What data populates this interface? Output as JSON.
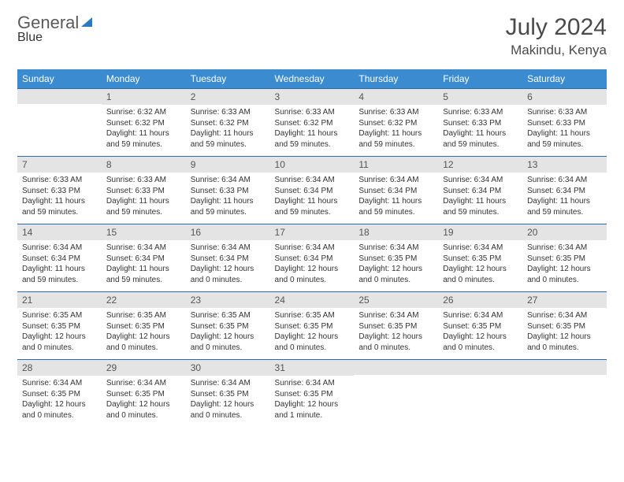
{
  "brand": {
    "part1": "General",
    "part2": "Blue"
  },
  "title": "July 2024",
  "location": "Makindu, Kenya",
  "colors": {
    "header_bg": "#3a8bd0",
    "header_text": "#ffffff",
    "daynum_bg": "#e4e4e4",
    "row_border": "#2a6aa8",
    "brand_blue": "#2a7ac0",
    "text": "#333333"
  },
  "weekdays": [
    "Sunday",
    "Monday",
    "Tuesday",
    "Wednesday",
    "Thursday",
    "Friday",
    "Saturday"
  ],
  "weeks": [
    [
      null,
      {
        "n": "1",
        "sr": "6:32 AM",
        "ss": "6:32 PM",
        "dl": "11 hours and 59 minutes."
      },
      {
        "n": "2",
        "sr": "6:33 AM",
        "ss": "6:32 PM",
        "dl": "11 hours and 59 minutes."
      },
      {
        "n": "3",
        "sr": "6:33 AM",
        "ss": "6:32 PM",
        "dl": "11 hours and 59 minutes."
      },
      {
        "n": "4",
        "sr": "6:33 AM",
        "ss": "6:32 PM",
        "dl": "11 hours and 59 minutes."
      },
      {
        "n": "5",
        "sr": "6:33 AM",
        "ss": "6:33 PM",
        "dl": "11 hours and 59 minutes."
      },
      {
        "n": "6",
        "sr": "6:33 AM",
        "ss": "6:33 PM",
        "dl": "11 hours and 59 minutes."
      }
    ],
    [
      {
        "n": "7",
        "sr": "6:33 AM",
        "ss": "6:33 PM",
        "dl": "11 hours and 59 minutes."
      },
      {
        "n": "8",
        "sr": "6:33 AM",
        "ss": "6:33 PM",
        "dl": "11 hours and 59 minutes."
      },
      {
        "n": "9",
        "sr": "6:34 AM",
        "ss": "6:33 PM",
        "dl": "11 hours and 59 minutes."
      },
      {
        "n": "10",
        "sr": "6:34 AM",
        "ss": "6:34 PM",
        "dl": "11 hours and 59 minutes."
      },
      {
        "n": "11",
        "sr": "6:34 AM",
        "ss": "6:34 PM",
        "dl": "11 hours and 59 minutes."
      },
      {
        "n": "12",
        "sr": "6:34 AM",
        "ss": "6:34 PM",
        "dl": "11 hours and 59 minutes."
      },
      {
        "n": "13",
        "sr": "6:34 AM",
        "ss": "6:34 PM",
        "dl": "11 hours and 59 minutes."
      }
    ],
    [
      {
        "n": "14",
        "sr": "6:34 AM",
        "ss": "6:34 PM",
        "dl": "11 hours and 59 minutes."
      },
      {
        "n": "15",
        "sr": "6:34 AM",
        "ss": "6:34 PM",
        "dl": "11 hours and 59 minutes."
      },
      {
        "n": "16",
        "sr": "6:34 AM",
        "ss": "6:34 PM",
        "dl": "12 hours and 0 minutes."
      },
      {
        "n": "17",
        "sr": "6:34 AM",
        "ss": "6:34 PM",
        "dl": "12 hours and 0 minutes."
      },
      {
        "n": "18",
        "sr": "6:34 AM",
        "ss": "6:35 PM",
        "dl": "12 hours and 0 minutes."
      },
      {
        "n": "19",
        "sr": "6:34 AM",
        "ss": "6:35 PM",
        "dl": "12 hours and 0 minutes."
      },
      {
        "n": "20",
        "sr": "6:34 AM",
        "ss": "6:35 PM",
        "dl": "12 hours and 0 minutes."
      }
    ],
    [
      {
        "n": "21",
        "sr": "6:35 AM",
        "ss": "6:35 PM",
        "dl": "12 hours and 0 minutes."
      },
      {
        "n": "22",
        "sr": "6:35 AM",
        "ss": "6:35 PM",
        "dl": "12 hours and 0 minutes."
      },
      {
        "n": "23",
        "sr": "6:35 AM",
        "ss": "6:35 PM",
        "dl": "12 hours and 0 minutes."
      },
      {
        "n": "24",
        "sr": "6:35 AM",
        "ss": "6:35 PM",
        "dl": "12 hours and 0 minutes."
      },
      {
        "n": "25",
        "sr": "6:34 AM",
        "ss": "6:35 PM",
        "dl": "12 hours and 0 minutes."
      },
      {
        "n": "26",
        "sr": "6:34 AM",
        "ss": "6:35 PM",
        "dl": "12 hours and 0 minutes."
      },
      {
        "n": "27",
        "sr": "6:34 AM",
        "ss": "6:35 PM",
        "dl": "12 hours and 0 minutes."
      }
    ],
    [
      {
        "n": "28",
        "sr": "6:34 AM",
        "ss": "6:35 PM",
        "dl": "12 hours and 0 minutes."
      },
      {
        "n": "29",
        "sr": "6:34 AM",
        "ss": "6:35 PM",
        "dl": "12 hours and 0 minutes."
      },
      {
        "n": "30",
        "sr": "6:34 AM",
        "ss": "6:35 PM",
        "dl": "12 hours and 0 minutes."
      },
      {
        "n": "31",
        "sr": "6:34 AM",
        "ss": "6:35 PM",
        "dl": "12 hours and 1 minute."
      },
      null,
      null,
      null
    ]
  ],
  "labels": {
    "sunrise": "Sunrise:",
    "sunset": "Sunset:",
    "daylight": "Daylight:"
  }
}
